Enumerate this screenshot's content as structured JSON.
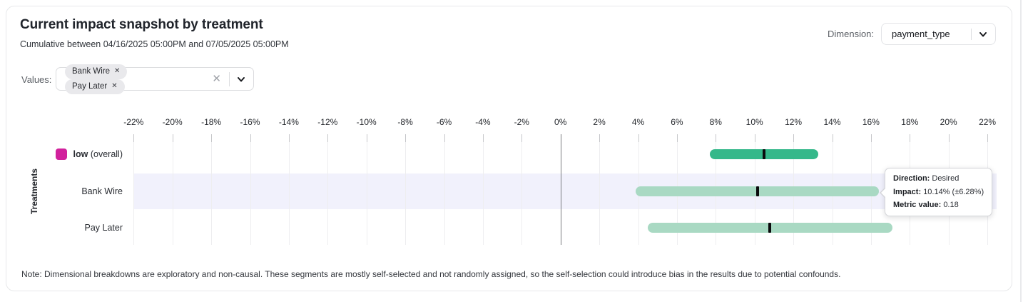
{
  "card": {
    "title": "Current impact snapshot by treatment",
    "subtitle": "Cumulative between 04/16/2025 05:00PM and 07/05/2025 05:00PM",
    "note": "Note: Dimensional breakdowns are exploratory and non-causal. These segments are mostly self-selected and not randomly assigned, so the self-selection could introduce bias in the results due to potential confounds."
  },
  "dimension": {
    "label": "Dimension:",
    "selected": "payment_type"
  },
  "values_filter": {
    "label": "Values:",
    "chips": [
      {
        "label": "Bank Wire"
      },
      {
        "label": "Pay Later"
      }
    ]
  },
  "icons": {
    "chip_remove_icon": "✕",
    "clear_all_icon": "✕"
  },
  "tooltip": {
    "rows": [
      {
        "label": "Direction:",
        "value": "Desired"
      },
      {
        "label": "Impact:",
        "value": "10.14% (±6.28%)"
      },
      {
        "label": "Metric value:",
        "value": "0.18"
      }
    ]
  },
  "chart_data": {
    "type": "bar",
    "orientation": "horizontal",
    "value_type": "confidence_interval",
    "ylabel": "Treatments",
    "xlabel": "",
    "x_axis": {
      "min": -22,
      "max": 22,
      "step": 2,
      "suffix": "%"
    },
    "grid": true,
    "marker_color": "#0b0b0d",
    "highlight_band_color": "#f1f1fc",
    "rows": [
      {
        "name": "low (overall)",
        "label_bold": "low",
        "label_rest": "(overall)",
        "legend_color": "#d1219c",
        "bar_color": "#35b88a",
        "low_pct": 7.7,
        "center_pct": 10.5,
        "high_pct": 13.3,
        "highlighted": false
      },
      {
        "name": "Bank Wire",
        "label": "Bank Wire",
        "bar_color": "#a9d9c3",
        "low_pct": 3.86,
        "center_pct": 10.14,
        "high_pct": 16.42,
        "highlighted": true
      },
      {
        "name": "Pay Later",
        "label": "Pay Later",
        "bar_color": "#a9d9c3",
        "low_pct": 4.5,
        "center_pct": 10.8,
        "high_pct": 17.1,
        "highlighted": false
      }
    ]
  }
}
